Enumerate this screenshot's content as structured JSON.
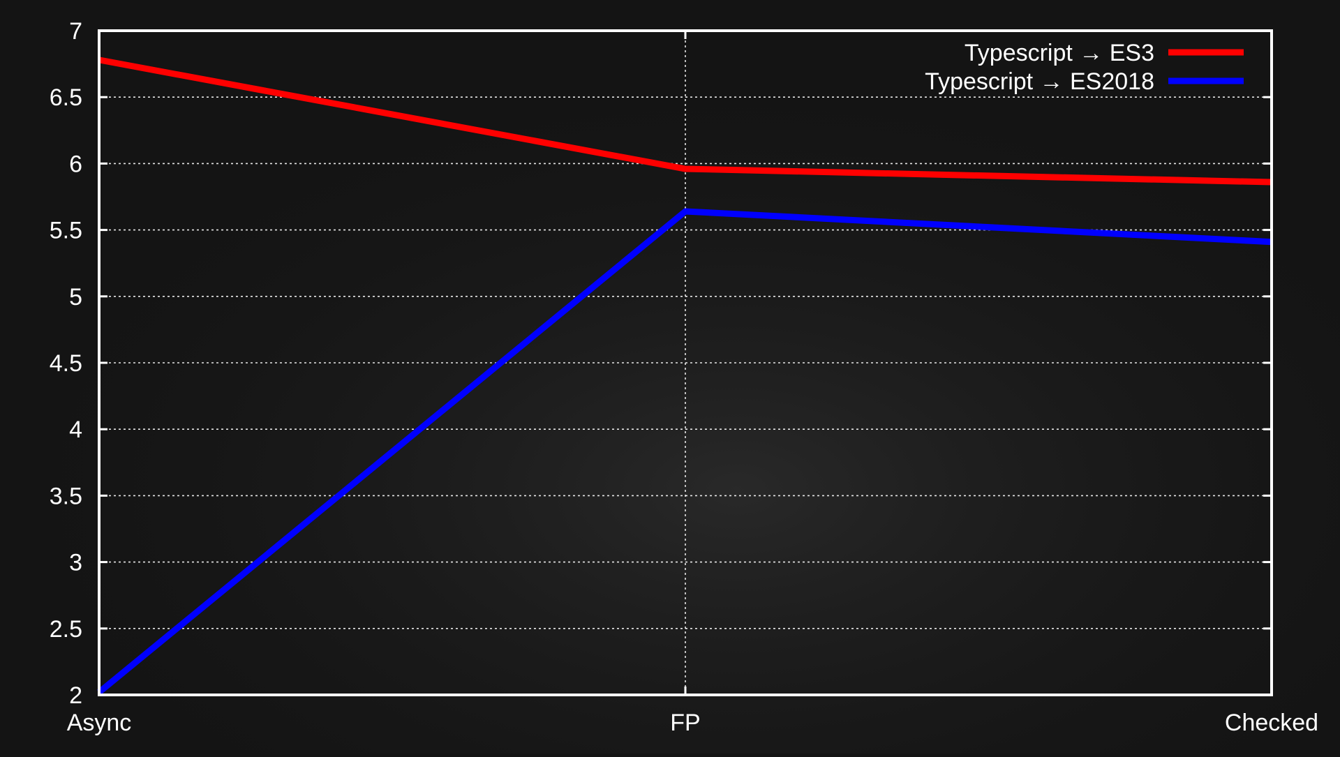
{
  "chart_data": {
    "type": "line",
    "categories": [
      "Async",
      "FP",
      "Checked"
    ],
    "series": [
      {
        "name": "Typescript → ES3",
        "values": [
          6.78,
          5.96,
          5.86
        ],
        "color": "#ff0000"
      },
      {
        "name": "Typescript → ES2018",
        "values": [
          2.02,
          5.64,
          5.41
        ],
        "color": "#0000ff"
      }
    ],
    "yticks": [
      "2",
      "2.5",
      "3",
      "3.5",
      "4",
      "4.5",
      "5",
      "5.5",
      "6",
      "6.5",
      "7"
    ],
    "ylim": [
      2,
      7
    ],
    "grid": true,
    "legend_position": "top-right",
    "colors": {
      "background": "#141414",
      "axis": "#ffffff",
      "grid": "#ffffff",
      "text": "#ffffff"
    }
  }
}
